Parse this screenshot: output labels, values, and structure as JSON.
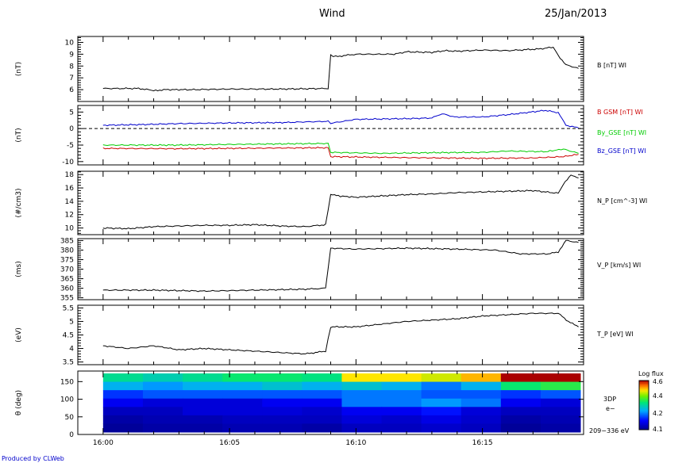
{
  "header": {
    "title": "Wind",
    "date": "25/Jan/2013"
  },
  "footer": {
    "credit": "Produced by CLWeb"
  },
  "chart_data": [
    {
      "type": "line",
      "ylabel": "(nT)",
      "ylim": [
        5,
        10.5
      ],
      "yticks": [
        6,
        7,
        8,
        9,
        10
      ],
      "series": [
        {
          "name": "B [nT] WI",
          "color": "#000000",
          "x": [
            0,
            1.4,
            1.8,
            2.0,
            2.4,
            3.5,
            5,
            7,
            8.9,
            9.0,
            9.2,
            10,
            11.5,
            12,
            13,
            13.5,
            14,
            15,
            16,
            17.3,
            17.8,
            18.0,
            18.3,
            18.8
          ],
          "y": [
            6.1,
            6.1,
            6.0,
            5.9,
            6.0,
            6.0,
            6.05,
            6.05,
            6.1,
            8.9,
            8.8,
            9.0,
            9.0,
            9.2,
            9.15,
            9.3,
            9.25,
            9.35,
            9.3,
            9.45,
            9.6,
            8.9,
            8.1,
            7.8
          ]
        }
      ]
    },
    {
      "type": "line",
      "ylabel": "(nT)",
      "ylim": [
        -11,
        7
      ],
      "yticks": [
        -10,
        -5,
        0,
        5
      ],
      "dashed_zero": true,
      "series": [
        {
          "name": "B GSM [nT] WI",
          "color": "#cc0000",
          "x": [
            0,
            3,
            5,
            8.9,
            9.0,
            12,
            15,
            17,
            18.2,
            18.8
          ],
          "y": [
            -6,
            -6.1,
            -6,
            -5.8,
            -8.5,
            -8.8,
            -9,
            -8.9,
            -8.5,
            -7.8
          ]
        },
        {
          "name": "By_GSE [nT] WI",
          "color": "#00cc00",
          "x": [
            0,
            3,
            5,
            8.9,
            9.0,
            11,
            13,
            15,
            16,
            17.5,
            18.2,
            18.8
          ],
          "y": [
            -5,
            -5,
            -4.8,
            -4.5,
            -7.2,
            -7.5,
            -7.3,
            -7.2,
            -6.8,
            -7,
            -6.2,
            -7.5
          ]
        },
        {
          "name": "Bz_GSE [nT] WI",
          "color": "#0000cc",
          "x": [
            0,
            1.5,
            3,
            5,
            7,
            8.9,
            9.0,
            10,
            12,
            13,
            13.4,
            13.9,
            15,
            16,
            17.5,
            18,
            18.3,
            18.8
          ],
          "y": [
            1,
            1.2,
            1.5,
            1.7,
            1.8,
            2.2,
            1.6,
            2.8,
            3.0,
            3.2,
            4.5,
            3.5,
            3.5,
            4.2,
            5.5,
            4.8,
            1.0,
            0.2
          ]
        }
      ]
    },
    {
      "type": "line",
      "ylabel": "(#/cm3)",
      "ylim": [
        9,
        18.5
      ],
      "yticks": [
        10,
        12,
        14,
        16,
        18
      ],
      "series": [
        {
          "name": "N_P [cm^-3] WI",
          "color": "#000000",
          "x": [
            0,
            1,
            2,
            3,
            4,
            5,
            6,
            7,
            8,
            8.8,
            9.0,
            9.3,
            10,
            11,
            12,
            13,
            14,
            15,
            16,
            17,
            18.0,
            18.2,
            18.5,
            18.8
          ],
          "y": [
            10,
            9.9,
            10.2,
            10.3,
            10.4,
            10.4,
            10.5,
            10.3,
            10.2,
            10.5,
            15,
            14.8,
            14.6,
            14.8,
            15,
            15.1,
            15.3,
            15.4,
            15.5,
            15.6,
            15.2,
            16.5,
            18,
            17.5
          ]
        }
      ]
    },
    {
      "type": "line",
      "ylabel": "(ms)",
      "ylim": [
        354,
        386
      ],
      "yticks": [
        355,
        360,
        365,
        370,
        375,
        380,
        385
      ],
      "series": [
        {
          "name": "V_P [km/s] WI",
          "color": "#000000",
          "x": [
            0,
            2,
            4,
            6,
            8,
            8.8,
            9.0,
            10,
            12,
            14,
            15.5,
            16.5,
            17.6,
            18,
            18.3,
            18.8
          ],
          "y": [
            359,
            359,
            358.5,
            359,
            359.5,
            360,
            381,
            380.5,
            381,
            380.5,
            380,
            378,
            378,
            379,
            385,
            384
          ]
        }
      ]
    },
    {
      "type": "line",
      "ylabel": "(eV)",
      "ylim": [
        3.4,
        5.6
      ],
      "yticks": [
        3.5,
        4.0,
        4.5,
        5.0,
        5.5
      ],
      "series": [
        {
          "name": "T_P [eV] WI",
          "color": "#000000",
          "x": [
            0,
            1,
            2,
            3,
            4,
            5,
            6,
            7,
            8,
            8.8,
            9.0,
            10,
            11,
            12,
            13,
            14,
            15,
            16,
            17,
            18,
            18.4,
            18.8
          ],
          "y": [
            4.1,
            4.0,
            4.1,
            3.95,
            4.0,
            3.95,
            3.9,
            3.85,
            3.8,
            3.9,
            4.8,
            4.8,
            4.9,
            5.0,
            5.05,
            5.1,
            5.2,
            5.25,
            5.3,
            5.3,
            5.0,
            4.8
          ]
        }
      ]
    },
    {
      "type": "heatmap",
      "ylabel": "θ (deg)",
      "ylim": [
        0,
        180
      ],
      "yticks": [
        0,
        50,
        100,
        150
      ],
      "xlabels": [
        "16:00",
        "16:05",
        "16:10",
        "16:15"
      ],
      "xtick_minutes": [
        0,
        5,
        10,
        15
      ],
      "x_range_minutes": [
        -1.0,
        19.0
      ],
      "data_x_start": 0.0,
      "columns": 12,
      "rows": 7,
      "colorbar": {
        "label": "Log flux",
        "min": 4.1,
        "max": 4.6,
        "ticks": [
          "4.6",
          "4.4",
          "4.2",
          "4.1"
        ]
      },
      "side_labels": [
        "3DP",
        "e−",
        "209−336 eV"
      ],
      "values": [
        [
          4.36,
          4.34,
          4.36,
          4.38,
          4.38,
          4.37,
          4.5,
          4.5,
          4.48,
          4.52,
          4.6,
          4.6
        ],
        [
          4.3,
          4.28,
          4.3,
          4.3,
          4.32,
          4.3,
          4.32,
          4.3,
          4.26,
          4.3,
          4.38,
          4.4
        ],
        [
          4.22,
          4.24,
          4.24,
          4.24,
          4.24,
          4.24,
          4.26,
          4.26,
          4.24,
          4.24,
          4.22,
          4.24
        ],
        [
          4.18,
          4.16,
          4.16,
          4.16,
          4.18,
          4.18,
          4.26,
          4.26,
          4.28,
          4.26,
          4.18,
          4.16
        ],
        [
          4.14,
          4.14,
          4.16,
          4.16,
          4.16,
          4.15,
          4.18,
          4.18,
          4.2,
          4.16,
          4.14,
          4.14
        ],
        [
          4.12,
          4.13,
          4.13,
          4.14,
          4.14,
          4.14,
          4.16,
          4.15,
          4.17,
          4.15,
          4.12,
          4.13
        ],
        [
          4.11,
          4.12,
          4.12,
          4.13,
          4.13,
          4.12,
          4.14,
          4.14,
          4.15,
          4.14,
          4.11,
          4.12
        ]
      ]
    }
  ]
}
